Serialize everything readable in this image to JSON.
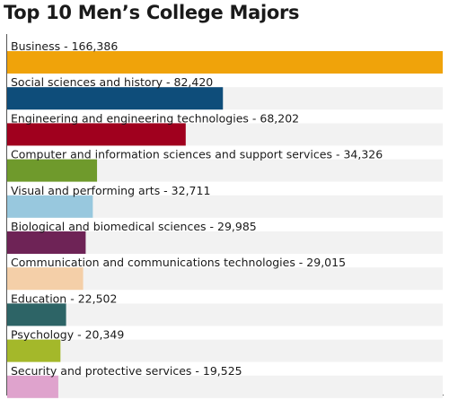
{
  "title": "Top 10 Men’s College Majors",
  "chart_data": {
    "type": "bar",
    "orientation": "horizontal",
    "title": "Top 10 Men’s College Majors",
    "categories": [
      "Business",
      "Social sciences and history",
      "Engineering and engineering technologies",
      "Computer and information sciences and support services",
      "Visual and performing arts",
      "Biological and biomedical sciences",
      "Communication and communications technologies",
      "Education",
      "Psychology",
      "Security and protective services"
    ],
    "values": [
      166386,
      82420,
      68202,
      34326,
      32711,
      29985,
      29015,
      22502,
      20349,
      19525
    ],
    "labels": [
      "Business - 166,386",
      "Social sciences and history - 82,420",
      "Engineering and engineering technologies - 68,202",
      "Computer and information sciences and support services - 34,326",
      "Visual and performing arts - 32,711",
      "Biological and biomedical sciences - 29,985",
      "Communication and communications technologies - 29,015",
      "Education - 22,502",
      "Psychology - 20,349",
      "Security and protective services - 19,525"
    ],
    "colors": [
      "#f0a30a",
      "#0e4d7a",
      "#a0001e",
      "#6f9a2c",
      "#98c8de",
      "#6e2356",
      "#f4cfa8",
      "#2d6466",
      "#a4b82a",
      "#dfa3cd"
    ],
    "xlim": [
      0,
      166386
    ],
    "xlabel": "",
    "ylabel": "",
    "grid": false,
    "legend": "none"
  }
}
